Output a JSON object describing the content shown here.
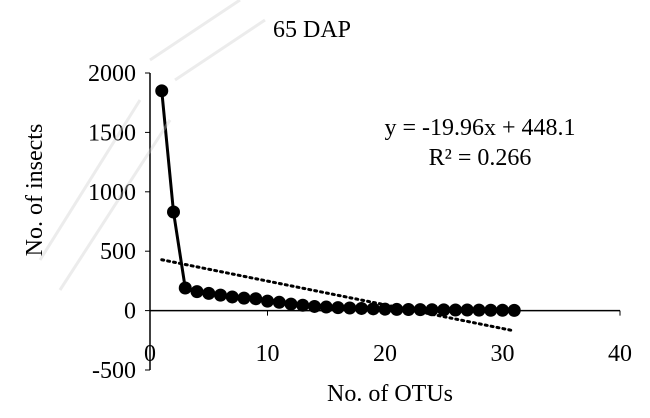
{
  "chart_data": {
    "type": "scatter",
    "title": "65 DAP",
    "xlabel": "No. of OTUs",
    "ylabel": "No. of insects",
    "xlim": [
      0,
      40
    ],
    "ylim": [
      -500,
      2000
    ],
    "x_ticks": [
      "0",
      "10",
      "20",
      "30",
      "40"
    ],
    "y_ticks": [
      "-500",
      "0",
      "500",
      "1000",
      "1500",
      "2000"
    ],
    "grid": false,
    "legend": "none",
    "series": [
      {
        "line": "solid",
        "marker": "filled-circle",
        "color": "#000000",
        "points": [
          [
            1,
            1850
          ],
          [
            2,
            830
          ],
          [
            3,
            190
          ],
          [
            4,
            160
          ],
          [
            5,
            145
          ],
          [
            6,
            130
          ],
          [
            7,
            115
          ],
          [
            8,
            105
          ],
          [
            9,
            100
          ],
          [
            10,
            80
          ],
          [
            11,
            70
          ],
          [
            12,
            55
          ],
          [
            13,
            45
          ],
          [
            14,
            35
          ],
          [
            15,
            30
          ],
          [
            16,
            25
          ],
          [
            17,
            22
          ],
          [
            18,
            18
          ],
          [
            19,
            15
          ],
          [
            20,
            12
          ],
          [
            21,
            10
          ],
          [
            22,
            9
          ],
          [
            23,
            8
          ],
          [
            24,
            7
          ],
          [
            25,
            6
          ],
          [
            26,
            5
          ],
          [
            27,
            5
          ],
          [
            28,
            4
          ],
          [
            29,
            3
          ],
          [
            30,
            3
          ],
          [
            31,
            2
          ]
        ]
      }
    ],
    "trendline": {
      "style": "dotted",
      "color": "#000000",
      "slope": -19.96,
      "intercept": 448.1,
      "x_range": [
        1,
        31
      ],
      "equation": "y = -19.96x + 448.1",
      "r_squared": "R² = 0.266"
    }
  }
}
